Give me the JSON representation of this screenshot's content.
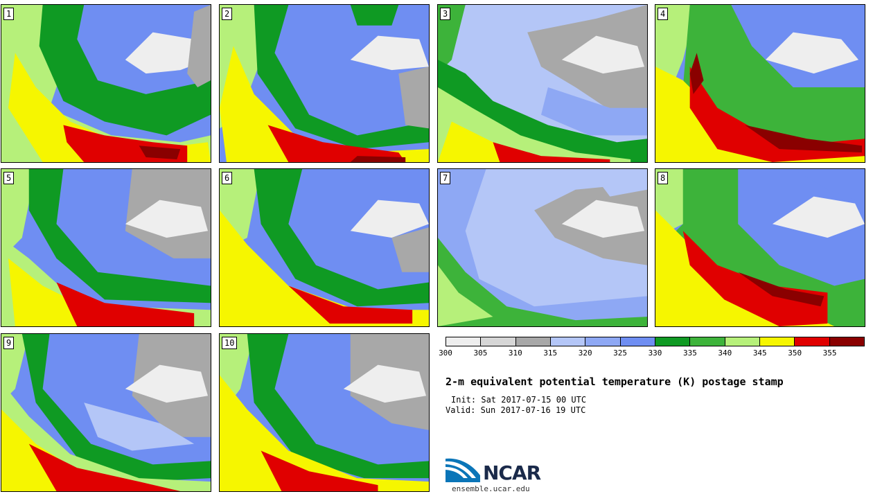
{
  "panels": [
    {
      "label": "1"
    },
    {
      "label": "2"
    },
    {
      "label": "3"
    },
    {
      "label": "4"
    },
    {
      "label": "5"
    },
    {
      "label": "6"
    },
    {
      "label": "7"
    },
    {
      "label": "8"
    },
    {
      "label": "9"
    },
    {
      "label": "10"
    }
  ],
  "colorbar": {
    "colors": [
      "#eeeeee",
      "#d6d6d6",
      "#a8a8a8",
      "#b4c6f7",
      "#8ea8f4",
      "#6f8ef2",
      "#0f9a23",
      "#3db33a",
      "#b6f07a",
      "#f6f600",
      "#e00000",
      "#8a0000"
    ],
    "ticks": [
      "300",
      "305",
      "310",
      "315",
      "320",
      "325",
      "330",
      "335",
      "340",
      "345",
      "350",
      "355"
    ]
  },
  "title": "2-m equivalent potential temperature (K) postage stamp",
  "init": "Init: Sat 2017-07-15 00 UTC",
  "valid": "Valid: Sun 2017-07-16 19 UTC",
  "logo": {
    "text": "NCAR",
    "site": "ensemble.ucar.edu"
  }
}
